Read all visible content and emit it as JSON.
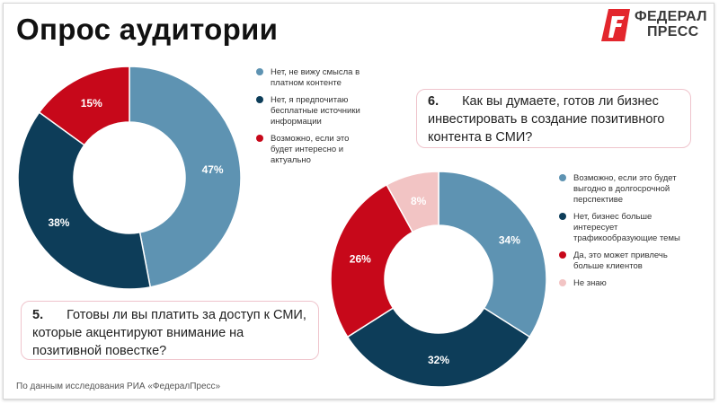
{
  "title": "Опрос аудитории",
  "logo": {
    "line1": "ФЕДЕРАЛ",
    "line2": "ПРЕСС",
    "accent": "#e3262d"
  },
  "chart_data": [
    {
      "type": "pie",
      "donut": true,
      "question": {
        "number": "5.",
        "text": "Готовы ли вы платить за доступ к СМИ, которые акцентируют внимание на позитивной повестке?"
      },
      "categories": [
        "Нет, не вижу смысла в платном контенте",
        "Нет, я предпочитаю бесплатные источники информации",
        "Возможно, если это будет интересно и актуально"
      ],
      "values": [
        47,
        38,
        15
      ],
      "labels": [
        "47%",
        "38%",
        "15%"
      ],
      "colors": [
        "#5e93b2",
        "#0d3d59",
        "#c7081a"
      ],
      "label_colors": [
        "#ffffff",
        "#ffffff",
        "#ffffff"
      ],
      "legend_position": "right"
    },
    {
      "type": "pie",
      "donut": true,
      "question": {
        "number": "6.",
        "text": "Как вы думаете, готов ли бизнес инвестировать в создание позитивного контента в СМИ?"
      },
      "categories": [
        "Возможно, если это будет выгодно в долгосрочной перспективе",
        "Нет, бизнес больше интересует трафикообразующие темы",
        "Да, это может привлечь больше клиентов",
        "Не знаю"
      ],
      "values": [
        34,
        32,
        26,
        8
      ],
      "labels": [
        "34%",
        "32%",
        "26%",
        "8%"
      ],
      "colors": [
        "#5e93b2",
        "#0d3d59",
        "#c7081a",
        "#f2c4c4"
      ],
      "label_colors": [
        "#ffffff",
        "#ffffff",
        "#ffffff",
        "#ffffff"
      ],
      "legend_position": "right"
    }
  ],
  "footer": "По данным исследования РИА «ФедералПресс»"
}
